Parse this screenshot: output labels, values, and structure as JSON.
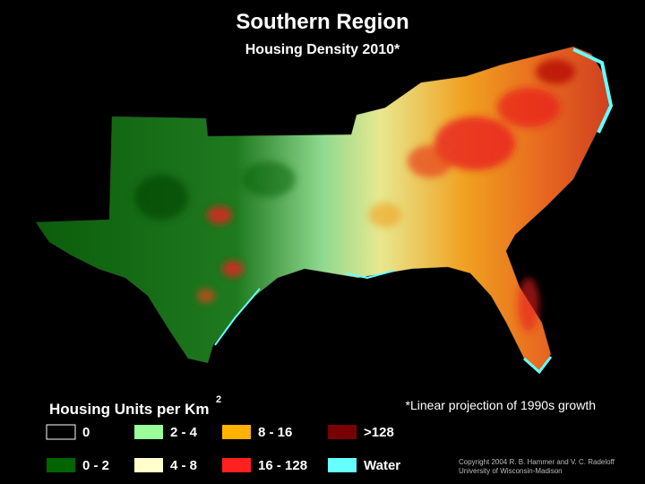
{
  "title": "Southern Region",
  "subtitle": "Housing Density 2010*",
  "legend": {
    "title": "Housing Units per Km",
    "title_superscript": "2",
    "items": [
      {
        "label": "0",
        "color": "#000000"
      },
      {
        "label": "2 - 4",
        "color": "#99ff99"
      },
      {
        "label": "8 - 16",
        "color": "#ffb300"
      },
      {
        "label": ">128",
        "color": "#7a0000"
      },
      {
        "label": "0 - 2",
        "color": "#006400"
      },
      {
        "label": "4 - 8",
        "color": "#ffffcc"
      },
      {
        "label": "16 - 128",
        "color": "#ff2020"
      },
      {
        "label": "Water",
        "color": "#66ffff"
      }
    ]
  },
  "footnote": "*Linear projection of 1990s growth",
  "copyright": [
    "Copyright 2004 R. B. Hammer and V. C. Radeloff",
    "University of Wisconsin-Madison"
  ]
}
